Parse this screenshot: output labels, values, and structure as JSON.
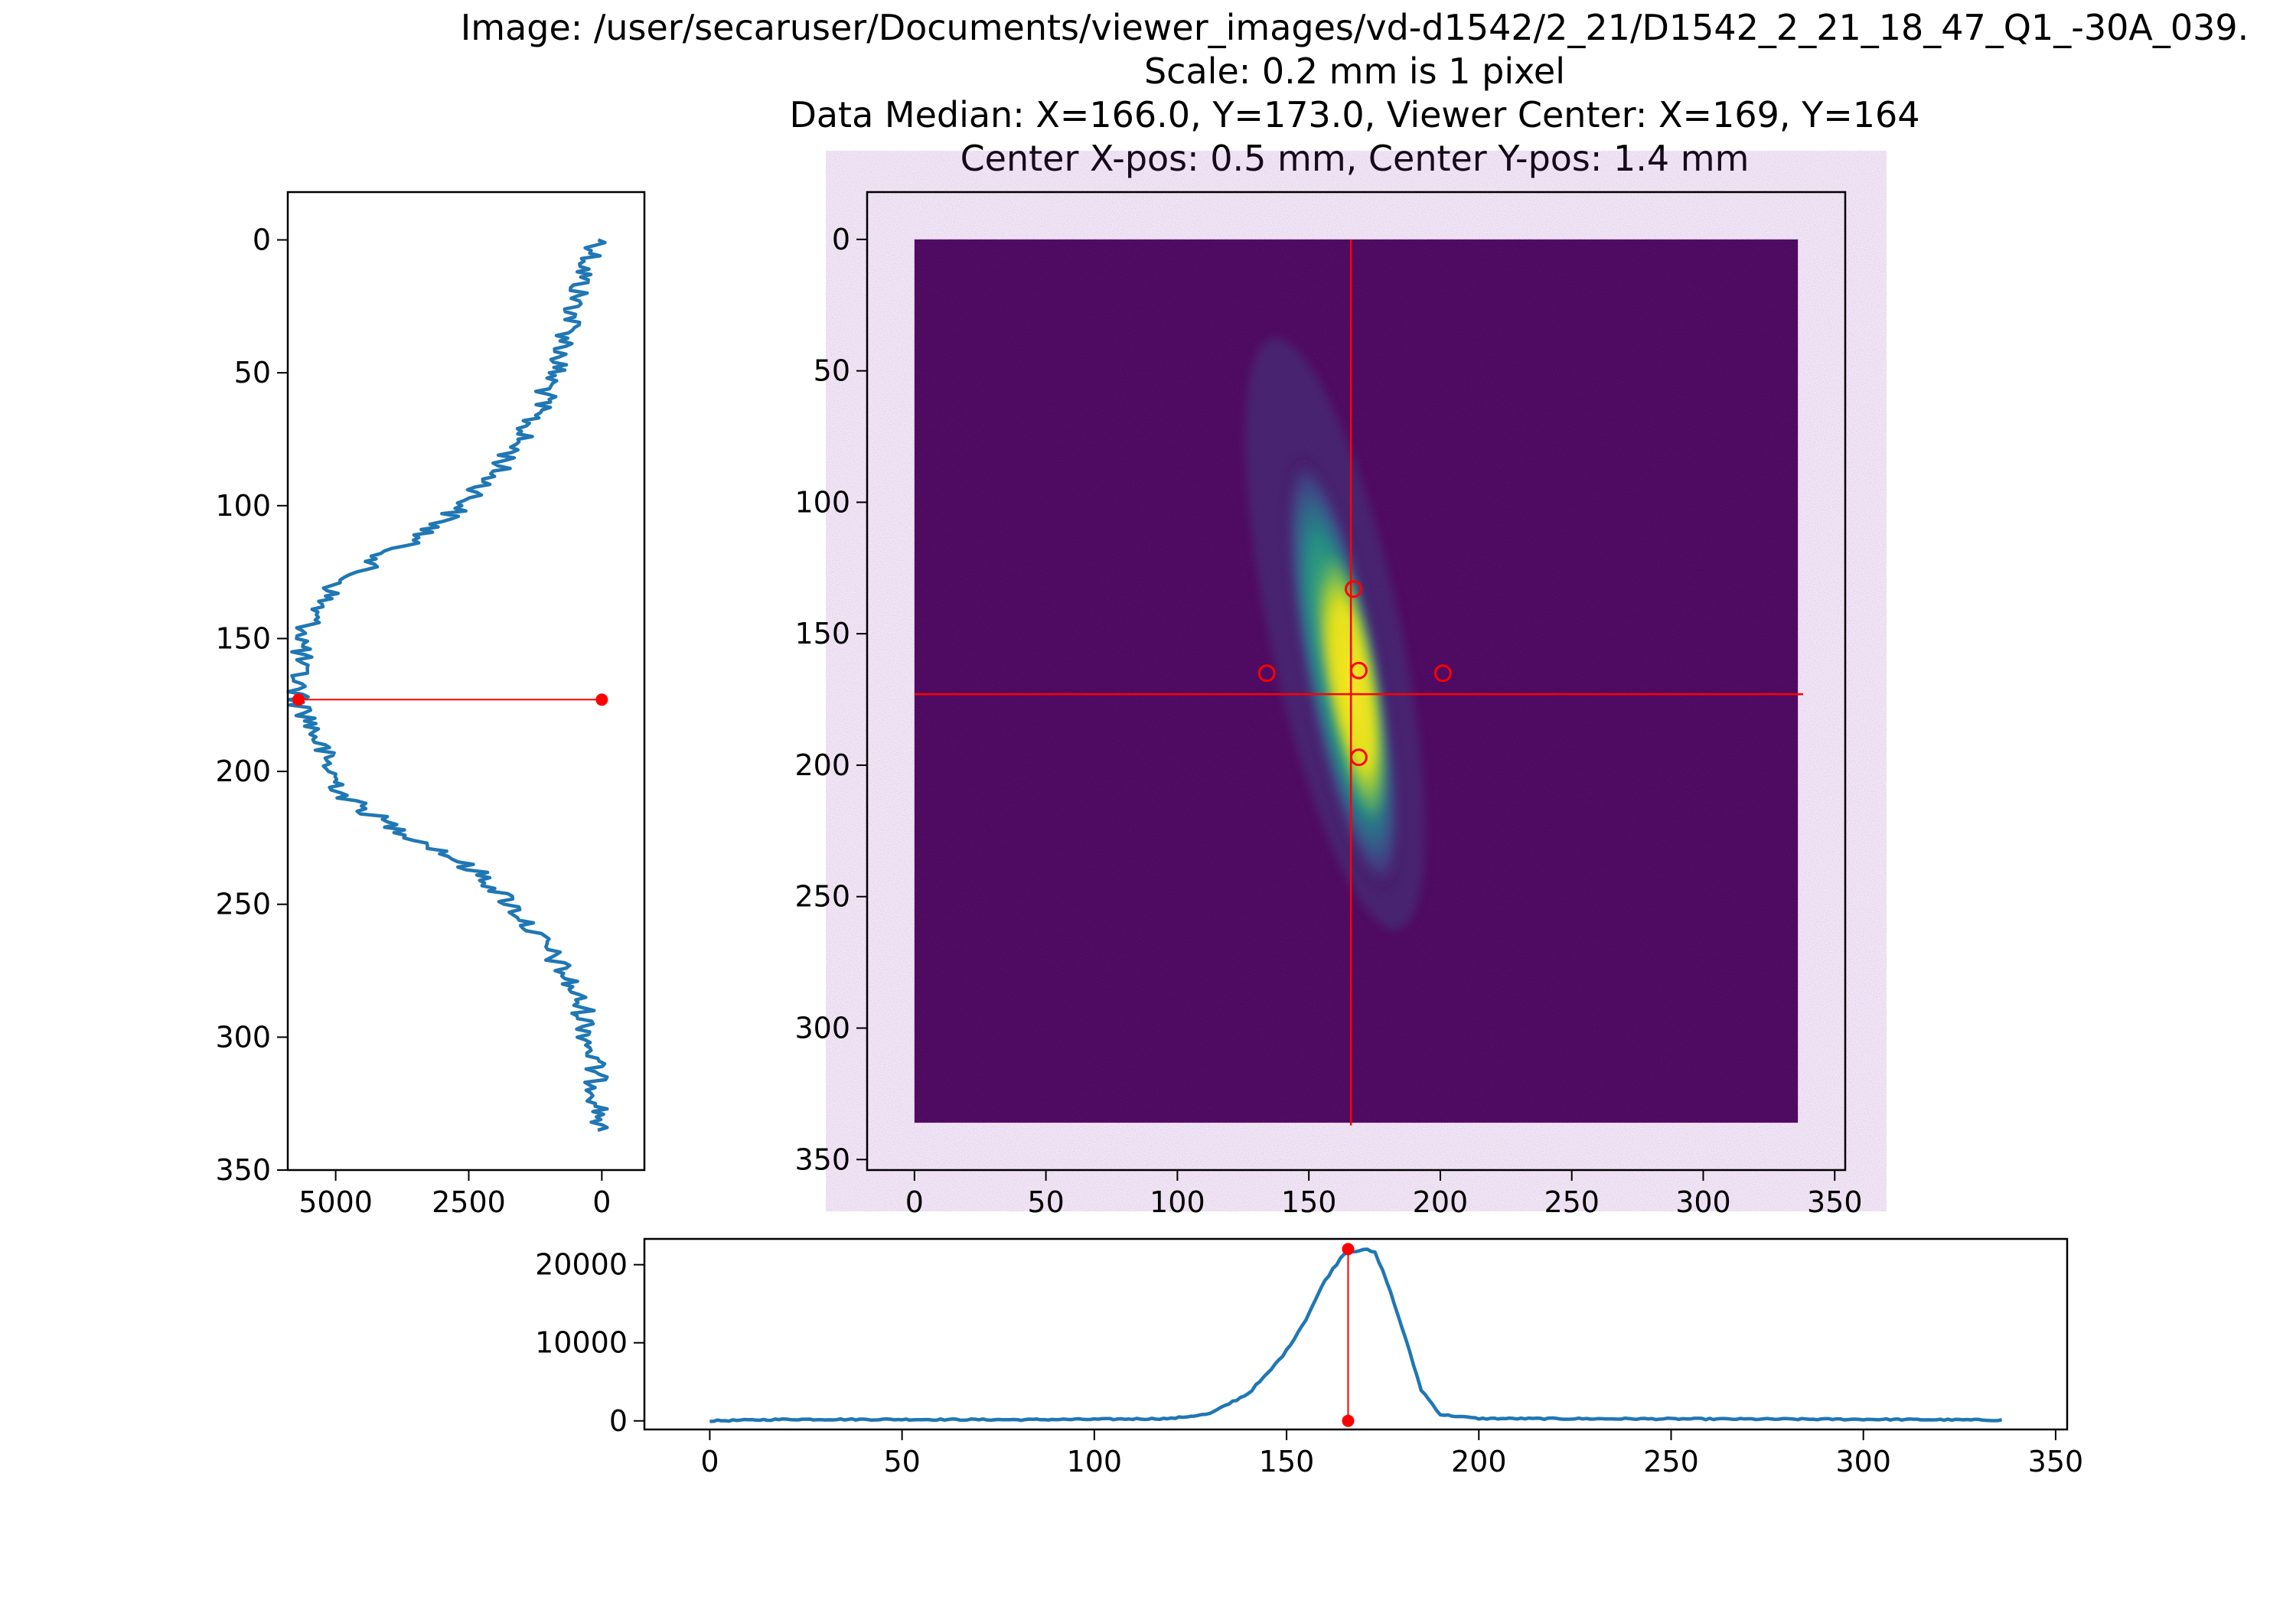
{
  "title_lines": [
    "Image: /user/secaruser/Documents/viewer_images/vd-d1542/2_21/D1542_2_21_18_47_Q1_-30A_039.",
    "Scale: 0.2 mm is 1 pixel",
    "Data Median: X=166.0, Y=173.0, Viewer Center: X=169, Y=164",
    "Center X-pos: 0.5 mm, Center Y-pos: 1.4 mm"
  ],
  "colors": {
    "profile_line": "#1f77b4",
    "marker": "#ff0000",
    "image_background": "#440154",
    "colormap": "viridis"
  },
  "chart_data": [
    {
      "id": "vertical-profile",
      "type": "line",
      "orientation": "vertical",
      "xlim": [
        5900,
        -800
      ],
      "ylim": [
        350,
        -18
      ],
      "xticks": [
        5000,
        2500,
        0
      ],
      "xtick_labels": [
        "5000",
        "2500",
        "0"
      ],
      "yticks": [
        0,
        50,
        100,
        150,
        200,
        250,
        300,
        350
      ],
      "ytick_labels": [
        "0",
        "50",
        "100",
        "150",
        "200",
        "250",
        "300",
        "350"
      ],
      "profile_points": [
        [
          0,
          0
        ],
        [
          10,
          300
        ],
        [
          20,
          450
        ],
        [
          30,
          550
        ],
        [
          40,
          700
        ],
        [
          50,
          900
        ],
        [
          60,
          1100
        ],
        [
          70,
          1400
        ],
        [
          80,
          1700
        ],
        [
          90,
          2100
        ],
        [
          100,
          2600
        ],
        [
          110,
          3300
        ],
        [
          120,
          4200
        ],
        [
          130,
          5000
        ],
        [
          140,
          5400
        ],
        [
          150,
          5600
        ],
        [
          160,
          5700
        ],
        [
          173,
          5700
        ],
        [
          180,
          5500
        ],
        [
          190,
          5300
        ],
        [
          200,
          5100
        ],
        [
          210,
          4800
        ],
        [
          220,
          4000
        ],
        [
          230,
          3000
        ],
        [
          240,
          2200
        ],
        [
          250,
          1700
        ],
        [
          260,
          1300
        ],
        [
          270,
          900
        ],
        [
          280,
          600
        ],
        [
          290,
          350
        ],
        [
          300,
          250
        ],
        [
          310,
          150
        ],
        [
          320,
          80
        ],
        [
          335,
          0
        ]
      ],
      "marker_line": {
        "y": 173,
        "x_from": 0,
        "x_to": 5700
      }
    },
    {
      "id": "beam-image",
      "type": "heatmap",
      "xlim": [
        -18,
        354
      ],
      "ylim": [
        354,
        -18
      ],
      "image_extent": [
        0,
        336,
        336,
        0
      ],
      "xticks": [
        0,
        50,
        100,
        150,
        200,
        250,
        300,
        350
      ],
      "xtick_labels": [
        "0",
        "50",
        "100",
        "150",
        "200",
        "250",
        "300",
        "350"
      ],
      "yticks": [
        0,
        50,
        100,
        150,
        200,
        250,
        300,
        350
      ],
      "ytick_labels": [
        "0",
        "50",
        "100",
        "150",
        "200",
        "250",
        "300",
        "350"
      ],
      "crosshair": {
        "x": 166,
        "y": 173
      },
      "circles": [
        [
          167,
          133
        ],
        [
          134,
          165
        ],
        [
          169,
          164
        ],
        [
          201,
          165
        ],
        [
          169,
          197
        ]
      ]
    },
    {
      "id": "horizontal-profile",
      "type": "line",
      "xlim": [
        -17,
        353
      ],
      "ylim": [
        -1100,
        23300
      ],
      "xticks": [
        0,
        50,
        100,
        150,
        200,
        250,
        300,
        350
      ],
      "xtick_labels": [
        "0",
        "50",
        "100",
        "150",
        "200",
        "250",
        "300",
        "350"
      ],
      "yticks": [
        0,
        10000,
        20000
      ],
      "ytick_labels": [
        "0",
        "10000",
        "20000"
      ],
      "profile_points": [
        [
          0,
          0
        ],
        [
          20,
          200
        ],
        [
          50,
          180
        ],
        [
          80,
          150
        ],
        [
          100,
          200
        ],
        [
          120,
          300
        ],
        [
          130,
          900
        ],
        [
          140,
          3500
        ],
        [
          145,
          6000
        ],
        [
          150,
          9000
        ],
        [
          155,
          13000
        ],
        [
          160,
          18000
        ],
        [
          165,
          21500
        ],
        [
          170,
          22000
        ],
        [
          173,
          21500
        ],
        [
          176,
          18000
        ],
        [
          180,
          12000
        ],
        [
          185,
          4000
        ],
        [
          190,
          800
        ],
        [
          200,
          300
        ],
        [
          250,
          250
        ],
        [
          300,
          200
        ],
        [
          336,
          100
        ]
      ],
      "marker_line": {
        "x": 166,
        "y_from": 0,
        "y_to": 22000
      }
    }
  ]
}
